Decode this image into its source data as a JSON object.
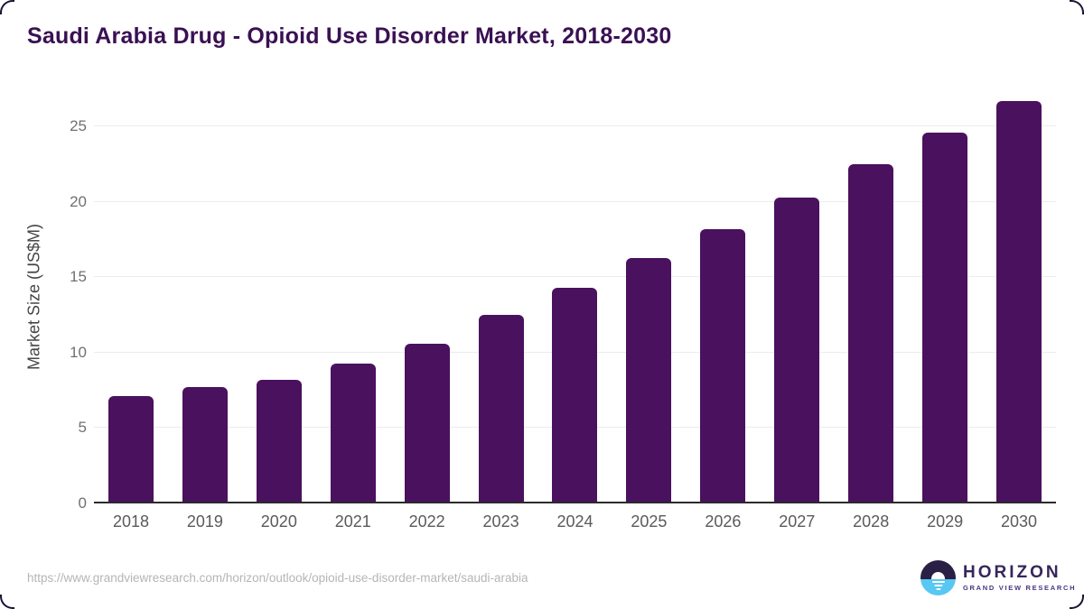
{
  "title": "Saudi Arabia Drug - Opioid Use Disorder Market, 2018-2030",
  "chart_data": {
    "type": "bar",
    "title": "Saudi Arabia Drug - Opioid Use Disorder Market, 2018-2030",
    "categories": [
      "2018",
      "2019",
      "2020",
      "2021",
      "2022",
      "2023",
      "2024",
      "2025",
      "2026",
      "2027",
      "2028",
      "2029",
      "2030"
    ],
    "values": [
      7.1,
      7.7,
      8.2,
      9.3,
      10.6,
      12.5,
      14.3,
      16.3,
      18.2,
      20.3,
      22.5,
      24.6,
      26.7
    ],
    "xlabel": "",
    "ylabel": "Market Size (US$M)",
    "ylim": [
      0,
      27.4
    ],
    "y_ticks": [
      0,
      5,
      10,
      15,
      20,
      25
    ],
    "grid": "horizontal",
    "legend": "none",
    "bar_color": "#4A115E"
  },
  "footer": {
    "source_url": "https://www.grandviewresearch.com/horizon/outlook/opioid-use-disorder-market/saudi-arabia"
  },
  "logo": {
    "name": "HORIZON",
    "subtitle": "GRAND VIEW RESEARCH"
  },
  "colors": {
    "bar": "#4A115E",
    "title_text": "#3A1053",
    "gridline": "#ECECEC",
    "axis_line": "#2B2B2B",
    "tick_label": "#707070",
    "x_label": "#5A5A5A",
    "url_text": "#B5B5B5",
    "logo_navy": "#2A2045",
    "logo_blue": "#58C7F3",
    "logo_text": "#36265B"
  }
}
